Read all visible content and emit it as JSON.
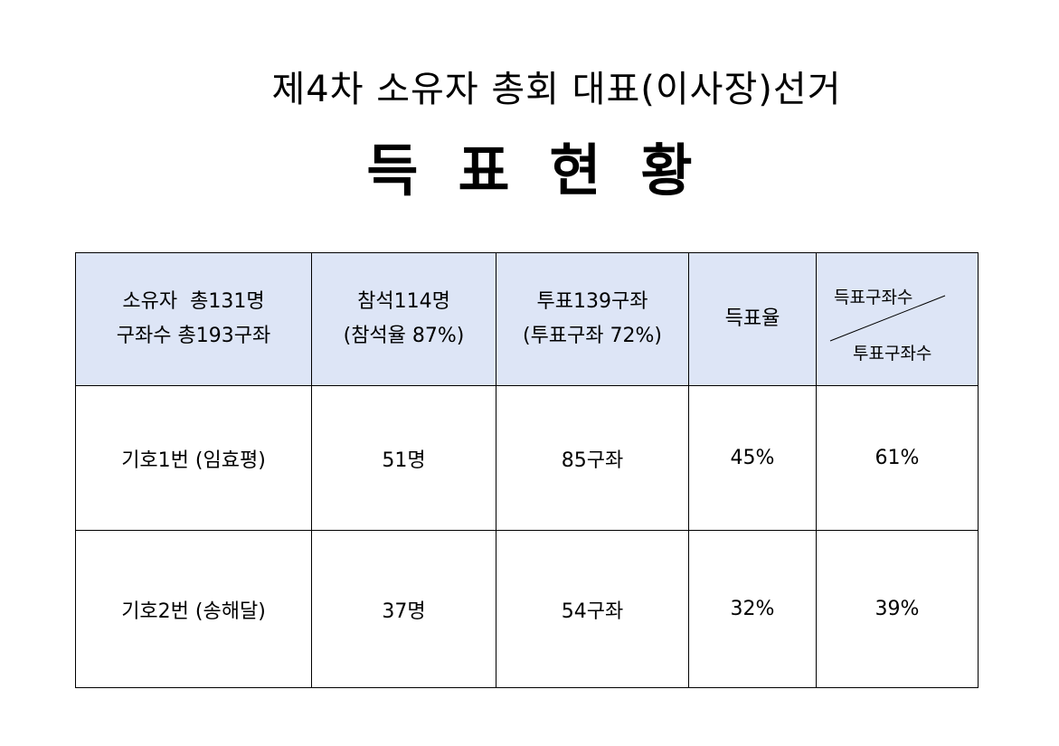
{
  "title": {
    "main": "제4차 소유자 총회 대표(이사장)선거",
    "sub": "득표현황"
  },
  "table": {
    "header": {
      "owners_line1": "소유자  총131명",
      "owners_line2": "구좌수 총193구좌",
      "attendance_line1": "참석114명",
      "attendance_line2": "(참석율 87%)",
      "votes_line1": "투표139구좌",
      "votes_line2": "(투표구좌 72%)",
      "vote_rate": "득표율",
      "diag_top": "득표구좌수",
      "diag_bottom": "투표구좌수"
    },
    "rows": [
      {
        "candidate": "기호1번 (임효평)",
        "attendees": "51명",
        "accounts": "85구좌",
        "vote_rate": "45%",
        "account_rate": "61%"
      },
      {
        "candidate": "기호2번 (송해달)",
        "attendees": "37명",
        "accounts": "54구좌",
        "vote_rate": "32%",
        "account_rate": "39%"
      }
    ]
  }
}
